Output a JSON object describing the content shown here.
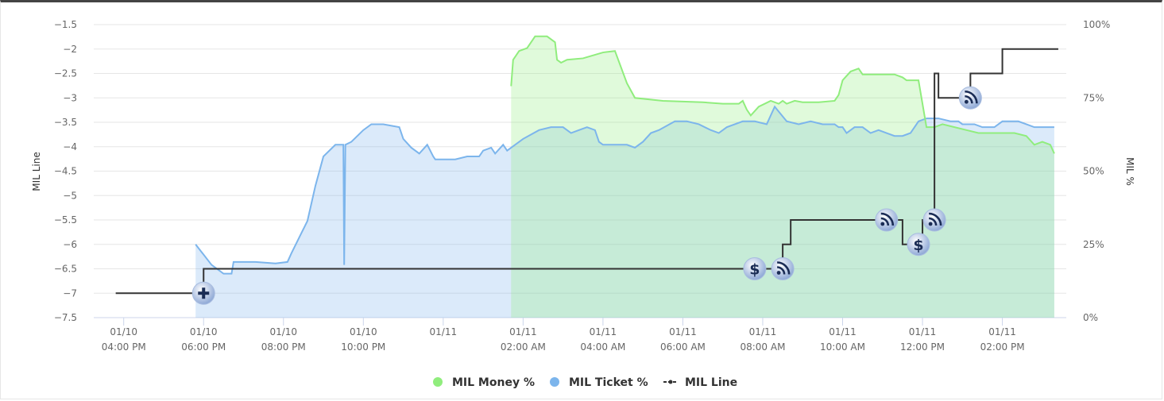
{
  "chart_data": {
    "type": "area",
    "left_axis": {
      "title": "MIL Line",
      "min": -7.5,
      "max": -1.5,
      "step": 0.5,
      "ticks": [
        "−1.5",
        "−2",
        "−2.5",
        "−3",
        "−3.5",
        "−4",
        "−4.5",
        "−5",
        "−5.5",
        "−6",
        "−6.5",
        "−7",
        "−7.5"
      ]
    },
    "right_axis": {
      "title": "MIL %",
      "min": 0,
      "max": 100,
      "ticks": [
        {
          "v": 100,
          "label": "100%"
        },
        {
          "v": 75,
          "label": "75%"
        },
        {
          "v": 50,
          "label": "50%"
        },
        {
          "v": 25,
          "label": "25%"
        },
        {
          "v": 0,
          "label": "0%"
        }
      ]
    },
    "x_axis": {
      "unit": "hours since 01/10 04:00 PM",
      "ticks": [
        {
          "t": 0,
          "line1": "01/10",
          "line2": "04:00 PM"
        },
        {
          "t": 2,
          "line1": "01/10",
          "line2": "06:00 PM"
        },
        {
          "t": 4,
          "line1": "01/10",
          "line2": "08:00 PM"
        },
        {
          "t": 6,
          "line1": "01/10",
          "line2": "10:00 PM"
        },
        {
          "t": 8,
          "line1": "01/11",
          "line2": ""
        },
        {
          "t": 10,
          "line1": "01/11",
          "line2": "02:00 AM"
        },
        {
          "t": 12,
          "line1": "01/11",
          "line2": "04:00 AM"
        },
        {
          "t": 14,
          "line1": "01/11",
          "line2": "06:00 AM"
        },
        {
          "t": 16,
          "line1": "01/11",
          "line2": "08:00 AM"
        },
        {
          "t": 18,
          "line1": "01/11",
          "line2": "10:00 AM"
        },
        {
          "t": 20,
          "line1": "01/11",
          "line2": "12:00 PM"
        },
        {
          "t": 22,
          "line1": "01/11",
          "line2": "02:00 PM"
        }
      ]
    },
    "series": [
      {
        "name": "MIL Money %",
        "color": "#90ed7d",
        "axis": "right",
        "points": [
          [
            9.7,
            79
          ],
          [
            9.75,
            88
          ],
          [
            9.9,
            91
          ],
          [
            10.1,
            92
          ],
          [
            10.3,
            96
          ],
          [
            10.6,
            96
          ],
          [
            10.8,
            94
          ],
          [
            10.85,
            88
          ],
          [
            10.95,
            87
          ],
          [
            11.1,
            88
          ],
          [
            11.5,
            88.5
          ],
          [
            12,
            90.5
          ],
          [
            12.3,
            91
          ],
          [
            12.6,
            80
          ],
          [
            12.8,
            75
          ],
          [
            13.5,
            74
          ],
          [
            14.5,
            73.5
          ],
          [
            15,
            73
          ],
          [
            15.4,
            73
          ],
          [
            15.5,
            74
          ],
          [
            15.6,
            71
          ],
          [
            15.7,
            69
          ],
          [
            15.9,
            72
          ],
          [
            16.2,
            74
          ],
          [
            16.4,
            73
          ],
          [
            16.5,
            74
          ],
          [
            16.6,
            73
          ],
          [
            16.8,
            74
          ],
          [
            17,
            73.5
          ],
          [
            17.4,
            73.5
          ],
          [
            17.8,
            74
          ],
          [
            17.9,
            76
          ],
          [
            18,
            81
          ],
          [
            18.2,
            84
          ],
          [
            18.4,
            85
          ],
          [
            18.5,
            83
          ],
          [
            18.7,
            83
          ],
          [
            19,
            83
          ],
          [
            19.3,
            83
          ],
          [
            19.5,
            82
          ],
          [
            19.6,
            81
          ],
          [
            19.8,
            81
          ],
          [
            19.9,
            81
          ],
          [
            20.1,
            65
          ],
          [
            20.3,
            65
          ],
          [
            20.5,
            66
          ],
          [
            20.8,
            65
          ],
          [
            21.1,
            64
          ],
          [
            21.4,
            63
          ],
          [
            21.8,
            63
          ],
          [
            22.1,
            63
          ],
          [
            22.3,
            63
          ],
          [
            22.6,
            62
          ],
          [
            22.8,
            59
          ],
          [
            23.0,
            60
          ],
          [
            23.2,
            59
          ],
          [
            23.3,
            56
          ]
        ],
        "area_baseline": [
          9.7,
          23.4
        ]
      },
      {
        "name": "MIL Ticket %",
        "color": "#7cb5ec",
        "axis": "right",
        "points": [
          [
            1.8,
            25
          ],
          [
            2.2,
            18
          ],
          [
            2.5,
            15
          ],
          [
            2.7,
            15
          ],
          [
            2.75,
            19
          ],
          [
            2.9,
            19
          ],
          [
            3.3,
            19
          ],
          [
            3.8,
            18.5
          ],
          [
            4.1,
            19
          ],
          [
            4.2,
            22
          ],
          [
            4.6,
            33
          ],
          [
            4.8,
            45
          ],
          [
            5.0,
            55
          ],
          [
            5.3,
            59
          ],
          [
            5.5,
            59
          ],
          [
            5.52,
            18
          ],
          [
            5.55,
            59
          ],
          [
            5.7,
            60
          ],
          [
            6.0,
            64
          ],
          [
            6.2,
            66
          ],
          [
            6.5,
            66
          ],
          [
            6.9,
            65
          ],
          [
            7.0,
            61
          ],
          [
            7.2,
            58
          ],
          [
            7.4,
            56
          ],
          [
            7.6,
            59
          ],
          [
            7.75,
            55
          ],
          [
            7.8,
            54
          ],
          [
            8.0,
            54
          ],
          [
            8.3,
            54
          ],
          [
            8.6,
            55
          ],
          [
            8.8,
            55
          ],
          [
            8.9,
            55
          ],
          [
            9.0,
            57
          ],
          [
            9.2,
            58
          ],
          [
            9.3,
            56
          ],
          [
            9.5,
            59
          ],
          [
            9.6,
            57
          ],
          [
            10.0,
            61
          ],
          [
            10.4,
            64
          ],
          [
            10.7,
            65
          ],
          [
            11.0,
            65
          ],
          [
            11.2,
            63
          ],
          [
            11.4,
            64
          ],
          [
            11.6,
            65
          ],
          [
            11.8,
            64
          ],
          [
            11.9,
            60
          ],
          [
            12.0,
            59
          ],
          [
            12.2,
            59
          ],
          [
            12.6,
            59
          ],
          [
            12.8,
            58
          ],
          [
            13.0,
            60
          ],
          [
            13.2,
            63
          ],
          [
            13.4,
            64
          ],
          [
            13.8,
            67
          ],
          [
            14.1,
            67
          ],
          [
            14.4,
            66
          ],
          [
            14.7,
            64
          ],
          [
            14.9,
            63
          ],
          [
            15.1,
            65
          ],
          [
            15.5,
            67
          ],
          [
            15.8,
            67
          ],
          [
            16.1,
            66
          ],
          [
            16.3,
            72
          ],
          [
            16.6,
            67
          ],
          [
            16.9,
            66
          ],
          [
            17.2,
            67
          ],
          [
            17.5,
            66
          ],
          [
            17.8,
            66
          ],
          [
            17.9,
            65
          ],
          [
            18.0,
            65
          ],
          [
            18.1,
            63
          ],
          [
            18.3,
            65
          ],
          [
            18.5,
            65
          ],
          [
            18.7,
            63
          ],
          [
            18.9,
            64
          ],
          [
            19.1,
            63
          ],
          [
            19.3,
            62
          ],
          [
            19.5,
            62
          ],
          [
            19.7,
            63
          ],
          [
            19.9,
            67
          ],
          [
            20.1,
            68
          ],
          [
            20.4,
            68
          ],
          [
            20.7,
            67
          ],
          [
            20.9,
            67
          ],
          [
            21.0,
            66
          ],
          [
            21.3,
            66
          ],
          [
            21.5,
            65
          ],
          [
            21.8,
            65
          ],
          [
            22.0,
            67
          ],
          [
            22.2,
            67
          ],
          [
            22.4,
            67
          ],
          [
            22.6,
            66
          ],
          [
            22.8,
            65
          ],
          [
            23.0,
            65
          ],
          [
            23.1,
            65
          ],
          [
            23.3,
            65
          ]
        ],
        "area_baseline": [
          1.8,
          23.4
        ]
      },
      {
        "name": "MIL Line",
        "color": "#333333",
        "axis": "left",
        "step": true,
        "points": [
          [
            -0.2,
            -7
          ],
          [
            2.0,
            -7
          ],
          [
            2.0,
            -6.5
          ],
          [
            15.7,
            -6.5
          ],
          [
            16.3,
            -6.5
          ],
          [
            16.5,
            -6.5
          ],
          [
            16.5,
            -6
          ],
          [
            16.7,
            -6
          ],
          [
            16.7,
            -5.5
          ],
          [
            19.5,
            -5.5
          ],
          [
            19.5,
            -6
          ],
          [
            20.0,
            -6
          ],
          [
            20.0,
            -5.5
          ],
          [
            20.3,
            -5.5
          ],
          [
            20.3,
            -2.5
          ],
          [
            20.4,
            -2.5
          ],
          [
            20.4,
            -3
          ],
          [
            21.2,
            -3
          ],
          [
            21.2,
            -2.5
          ],
          [
            22.0,
            -2.5
          ],
          [
            22.0,
            -2
          ],
          [
            23.4,
            -2
          ]
        ]
      }
    ],
    "markers": [
      {
        "type": "plus-icon",
        "t": 2.0,
        "y": -7
      },
      {
        "type": "dollar-icon",
        "t": 15.8,
        "y": -6.5
      },
      {
        "type": "rss-icon",
        "t": 16.5,
        "y": -6.5
      },
      {
        "type": "rss-icon",
        "t": 19.1,
        "y": -5.5
      },
      {
        "type": "dollar-icon",
        "t": 19.9,
        "y": -6
      },
      {
        "type": "rss-icon",
        "t": 20.3,
        "y": -5.5
      },
      {
        "type": "rss-icon",
        "t": 21.2,
        "y": -3
      }
    ],
    "legend": {
      "placement": "bottom-center",
      "items": [
        {
          "label": "MIL Money %",
          "symbol": "circle",
          "color": "#90ed7d"
        },
        {
          "label": "MIL Ticket %",
          "symbol": "circle",
          "color": "#7cb5ec"
        },
        {
          "label": "MIL Line",
          "symbol": "line",
          "color": "#333333"
        }
      ]
    },
    "grid": true
  }
}
